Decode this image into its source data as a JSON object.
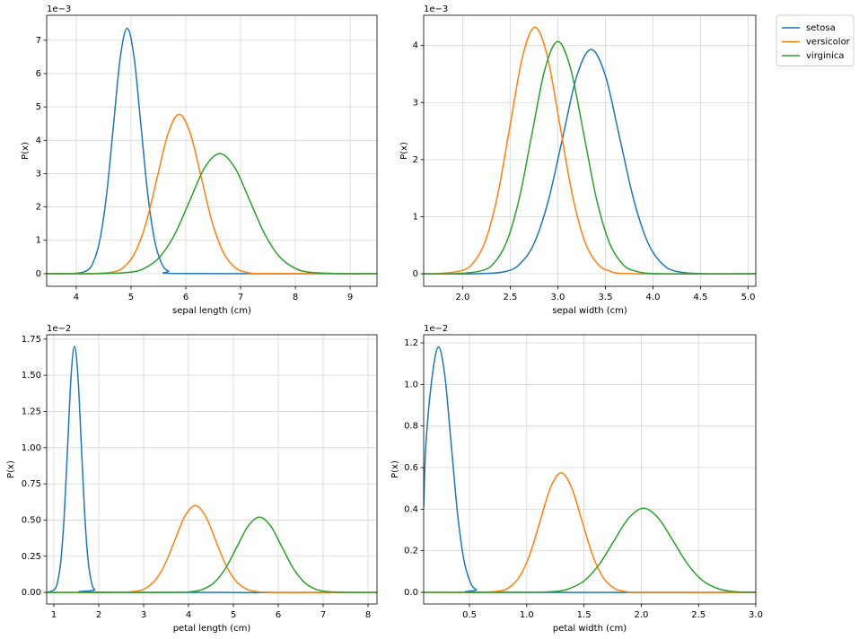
{
  "chart_data": [
    {
      "type": "line",
      "xlabel": "sepal length (cm)",
      "ylabel": "P(x)",
      "offset_text": "1e−3",
      "xlim": [
        3.46,
        9.49
      ],
      "ylim": [
        -0.38,
        7.75
      ],
      "xticks": [
        4,
        5,
        6,
        7,
        8,
        9
      ],
      "yticks": [
        0,
        1,
        2,
        3,
        4,
        5,
        6,
        7
      ],
      "grid": true,
      "series": [
        {
          "color": "#1f77b4",
          "x": [
            3.46,
            3.93,
            4.18,
            4.305,
            4.43,
            4.555,
            4.68,
            4.805,
            4.93,
            5.055,
            5.18,
            5.305,
            5.43,
            5.555,
            5.68,
            5.93,
            9.49
          ],
          "values": [
            0,
            0.002,
            0.08,
            0.32,
            1.0,
            2.39,
            4.46,
            6.5,
            7.36,
            6.5,
            4.46,
            2.39,
            1.0,
            0.32,
            0.08,
            0.002,
            0
          ]
        },
        {
          "color": "#ff7f0e",
          "x": [
            3.46,
            4.28,
            4.68,
            4.88,
            5.08,
            5.28,
            5.48,
            5.68,
            5.88,
            6.08,
            6.28,
            6.48,
            6.68,
            6.88,
            7.08,
            7.48,
            9.49
          ],
          "values": [
            0,
            0.001,
            0.05,
            0.21,
            0.65,
            1.55,
            2.9,
            4.22,
            4.78,
            4.22,
            2.9,
            1.55,
            0.65,
            0.21,
            0.05,
            0.001,
            0
          ]
        },
        {
          "color": "#2ca02c",
          "x": [
            3.46,
            4.42,
            4.97,
            5.245,
            5.52,
            5.795,
            6.07,
            6.345,
            6.62,
            6.895,
            7.17,
            7.445,
            7.72,
            7.995,
            8.27,
            8.82,
            9.49
          ],
          "values": [
            0,
            0.001,
            0.04,
            0.16,
            0.49,
            1.17,
            2.18,
            3.18,
            3.6,
            3.18,
            2.18,
            1.17,
            0.49,
            0.16,
            0.04,
            0.001,
            0
          ]
        }
      ]
    },
    {
      "type": "line",
      "xlabel": "sepal width (cm)",
      "ylabel": "P(x)",
      "offset_text": "1e−3",
      "legend": "outside-right",
      "xlim": [
        1.59,
        5.08
      ],
      "ylim": [
        -0.22,
        4.53
      ],
      "xticks": [
        {
          "value": 2,
          "label": "2.0"
        },
        2.5,
        {
          "value": 3,
          "label": "3.0"
        },
        3.5,
        {
          "value": 4,
          "label": "4.0"
        },
        4.5,
        {
          "value": 5,
          "label": "5.0"
        }
      ],
      "yticks": [
        0,
        1,
        2,
        3,
        4
      ],
      "grid": true,
      "series": [
        {
          "name": "setosa",
          "color": "#1f77b4",
          "x": [
            1.59,
            2.15,
            2.45,
            2.6,
            2.75,
            2.9,
            3.05,
            3.2,
            3.35,
            3.5,
            3.65,
            3.8,
            3.95,
            4.1,
            4.25,
            4.55,
            5.08
          ],
          "values": [
            0,
            0.001,
            0.04,
            0.17,
            0.53,
            1.28,
            2.38,
            3.47,
            3.93,
            3.47,
            2.38,
            1.28,
            0.53,
            0.17,
            0.04,
            0.001,
            0
          ]
        },
        {
          "name": "versicolor",
          "color": "#ff7f0e",
          "x": [
            1.59,
            1.72,
            1.98,
            2.11,
            2.24,
            2.37,
            2.5,
            2.63,
            2.76,
            2.89,
            3.02,
            3.15,
            3.28,
            3.41,
            3.54,
            3.8,
            5.08
          ],
          "values": [
            0,
            0.001,
            0.05,
            0.19,
            0.58,
            1.4,
            2.62,
            3.81,
            4.32,
            3.81,
            2.62,
            1.4,
            0.58,
            0.19,
            0.05,
            0.001,
            0
          ]
        },
        {
          "name": "virginica",
          "color": "#2ca02c",
          "x": [
            1.59,
            1.92,
            2.19,
            2.325,
            2.46,
            2.595,
            2.73,
            2.865,
            3.0,
            3.135,
            3.27,
            3.405,
            3.54,
            3.675,
            3.81,
            4.08,
            5.08
          ],
          "values": [
            0,
            0.001,
            0.05,
            0.18,
            0.55,
            1.32,
            2.47,
            3.59,
            4.07,
            3.59,
            2.47,
            1.32,
            0.55,
            0.18,
            0.05,
            0.001,
            0
          ]
        }
      ]
    },
    {
      "type": "line",
      "xlabel": "petal length (cm)",
      "ylabel": "P(x)",
      "offset_text": "1e−2",
      "xlim": [
        0.84,
        8.2
      ],
      "ylim": [
        -0.08,
        1.78
      ],
      "xticks": [
        1,
        2,
        3,
        4,
        5,
        6,
        7,
        8
      ],
      "yticks": [
        {
          "value": 0,
          "label": "0.00"
        },
        0.25,
        {
          "value": 0.5,
          "label": "0.50"
        },
        0.75,
        {
          "value": 1,
          "label": "1.00"
        },
        1.25,
        {
          "value": 1.5,
          "label": "1.50"
        },
        1.75
      ],
      "grid": true,
      "series": [
        {
          "color": "#1f77b4",
          "x": [
            0.84,
            0.86,
            1.01,
            1.085,
            1.16,
            1.235,
            1.31,
            1.385,
            1.46,
            1.535,
            1.61,
            1.685,
            1.76,
            1.835,
            1.91,
            2.06,
            8.2
          ],
          "values": [
            0,
            0.001,
            0.019,
            0.075,
            0.23,
            0.552,
            1.031,
            1.5,
            1.7,
            1.5,
            1.031,
            0.552,
            0.23,
            0.075,
            0.019,
            0.001,
            0
          ]
        },
        {
          "color": "#ff7f0e",
          "x": [
            0.84,
            2.35,
            2.8,
            3.025,
            3.25,
            3.475,
            3.7,
            3.925,
            4.15,
            4.375,
            4.6,
            4.825,
            5.05,
            5.275,
            5.5,
            5.95,
            8.2
          ],
          "values": [
            0,
            0.0002,
            0.007,
            0.026,
            0.081,
            0.195,
            0.364,
            0.53,
            0.6,
            0.53,
            0.364,
            0.195,
            0.081,
            0.026,
            0.007,
            0.0002,
            0
          ]
        },
        {
          "color": "#2ca02c",
          "x": [
            0.84,
            3.58,
            4.08,
            4.33,
            4.58,
            4.83,
            5.08,
            5.33,
            5.58,
            5.83,
            6.08,
            6.33,
            6.58,
            6.83,
            7.08,
            7.58,
            8.2
          ],
          "values": [
            0,
            0.0002,
            0.006,
            0.023,
            0.07,
            0.169,
            0.315,
            0.459,
            0.52,
            0.459,
            0.315,
            0.169,
            0.07,
            0.023,
            0.006,
            0.0002,
            0
          ]
        }
      ]
    },
    {
      "type": "line",
      "xlabel": "petal width (cm)",
      "ylabel": "P(x)",
      "offset_text": "1e−2",
      "xlim": [
        0.1,
        3.0
      ],
      "ylim": [
        -0.056,
        1.239
      ],
      "xticks": [
        0.5,
        {
          "value": 1,
          "label": "1.0"
        },
        1.5,
        {
          "value": 2,
          "label": "2.0"
        },
        2.5,
        {
          "value": 3,
          "label": "3.0"
        }
      ],
      "yticks": [
        {
          "value": 0,
          "label": "0.0"
        },
        0.2,
        0.4,
        0.6,
        0.8,
        {
          "value": 1,
          "label": "1.0"
        },
        1.2
      ],
      "grid": true,
      "series": [
        {
          "color": "#1f77b4",
          "x": [
            0.1,
            0.12,
            0.175,
            0.23,
            0.285,
            0.34,
            0.395,
            0.45,
            0.505,
            0.56,
            0.67,
            3.0
          ],
          "values": [
            0.41,
            0.716,
            1.041,
            1.18,
            1.041,
            0.716,
            0.383,
            0.16,
            0.052,
            0.013,
            0.0004,
            0
          ]
        },
        {
          "color": "#ff7f0e",
          "x": [
            0.1,
            0.58,
            0.76,
            0.85,
            0.94,
            1.03,
            1.12,
            1.21,
            1.3,
            1.39,
            1.48,
            1.57,
            1.66,
            1.75,
            1.84,
            2.02,
            3.0
          ],
          "values": [
            0,
            0.0002,
            0.006,
            0.025,
            0.078,
            0.187,
            0.349,
            0.507,
            0.575,
            0.507,
            0.349,
            0.187,
            0.078,
            0.025,
            0.006,
            0.0002,
            0
          ]
        },
        {
          "color": "#2ca02c",
          "x": [
            0.1,
            0.98,
            1.24,
            1.37,
            1.5,
            1.63,
            1.76,
            1.89,
            2.02,
            2.15,
            2.28,
            2.41,
            2.54,
            2.67,
            2.8,
            3.0
          ],
          "values": [
            0,
            0.0001,
            0.004,
            0.018,
            0.055,
            0.132,
            0.246,
            0.357,
            0.405,
            0.357,
            0.246,
            0.132,
            0.055,
            0.018,
            0.004,
            0.0003
          ]
        }
      ]
    }
  ]
}
